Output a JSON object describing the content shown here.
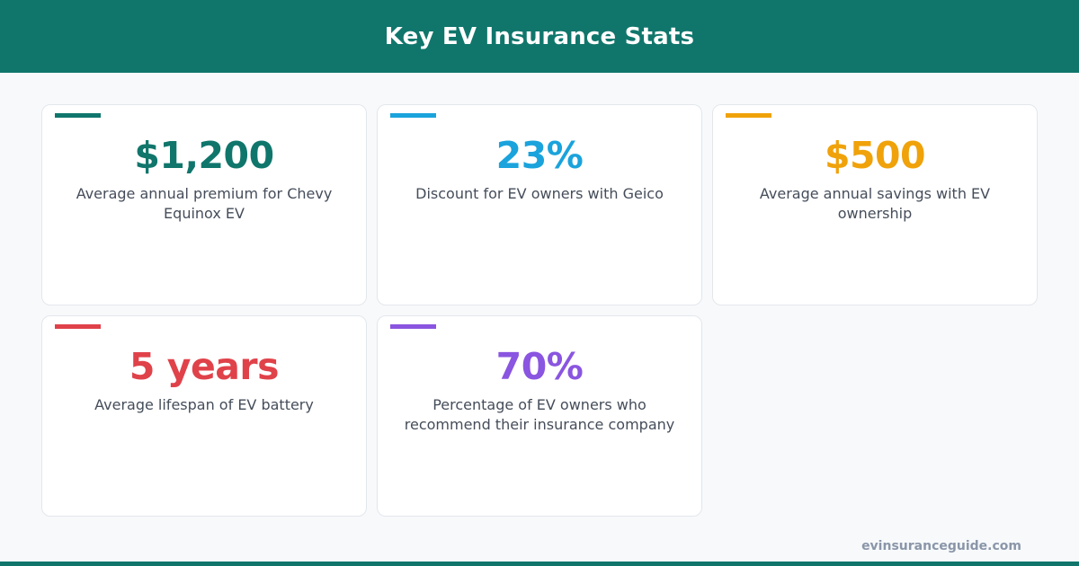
{
  "header": {
    "title": "Key EV Insurance Stats"
  },
  "colors": {
    "brand": "#10766c",
    "teal": "#10766c",
    "sky": "#1aa3dc",
    "amber": "#f0a20a",
    "red": "#e0424a",
    "purple": "#8a55e0"
  },
  "stats": [
    {
      "value": "$1,200",
      "description": "Average annual premium for Chevy Equinox EV",
      "color": "#10766c"
    },
    {
      "value": "23%",
      "description": "Discount for EV owners with Geico",
      "color": "#1aa3dc"
    },
    {
      "value": "$500",
      "description": "Average annual savings with EV ownership",
      "color": "#f0a20a"
    },
    {
      "value": "5 years",
      "description": "Average lifespan of EV battery",
      "color": "#e0424a"
    },
    {
      "value": "70%",
      "description": "Percentage of EV owners who recommend their insurance company",
      "color": "#8a55e0"
    }
  ],
  "footer": {
    "site": "evinsuranceguide.com"
  }
}
